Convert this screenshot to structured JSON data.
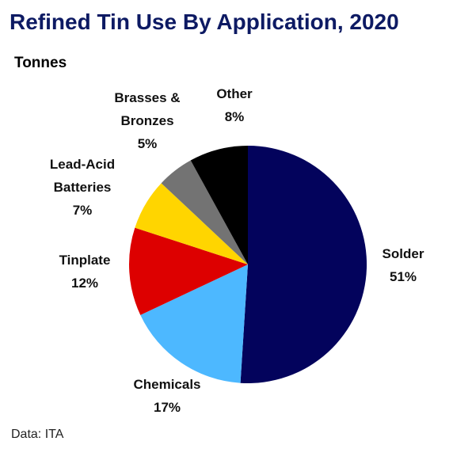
{
  "title": "Refined Tin Use By Application, 2020",
  "subtitle": "Tonnes",
  "source": "Data: ITA",
  "chart_data": {
    "type": "pie",
    "title": "Refined Tin Use By Application, 2020",
    "unit": "Tonnes",
    "start_angle_deg": 0,
    "direction": "clockwise",
    "slices": [
      {
        "label": "Solder",
        "value": 51,
        "pct_label": "51%",
        "color": "#03035c"
      },
      {
        "label": "Chemicals",
        "value": 17,
        "pct_label": "17%",
        "color": "#4db8ff"
      },
      {
        "label": "Tinplate",
        "value": 12,
        "pct_label": "12%",
        "color": "#dd0000"
      },
      {
        "label": "Lead-Acid Batteries",
        "value": 7,
        "pct_label": "7%",
        "color": "#ffd500"
      },
      {
        "label": "Brasses & Bronzes",
        "value": 5,
        "pct_label": "5%",
        "color": "#737373"
      },
      {
        "label": "Other",
        "value": 8,
        "pct_label": "8%",
        "color": "#000000"
      }
    ]
  }
}
